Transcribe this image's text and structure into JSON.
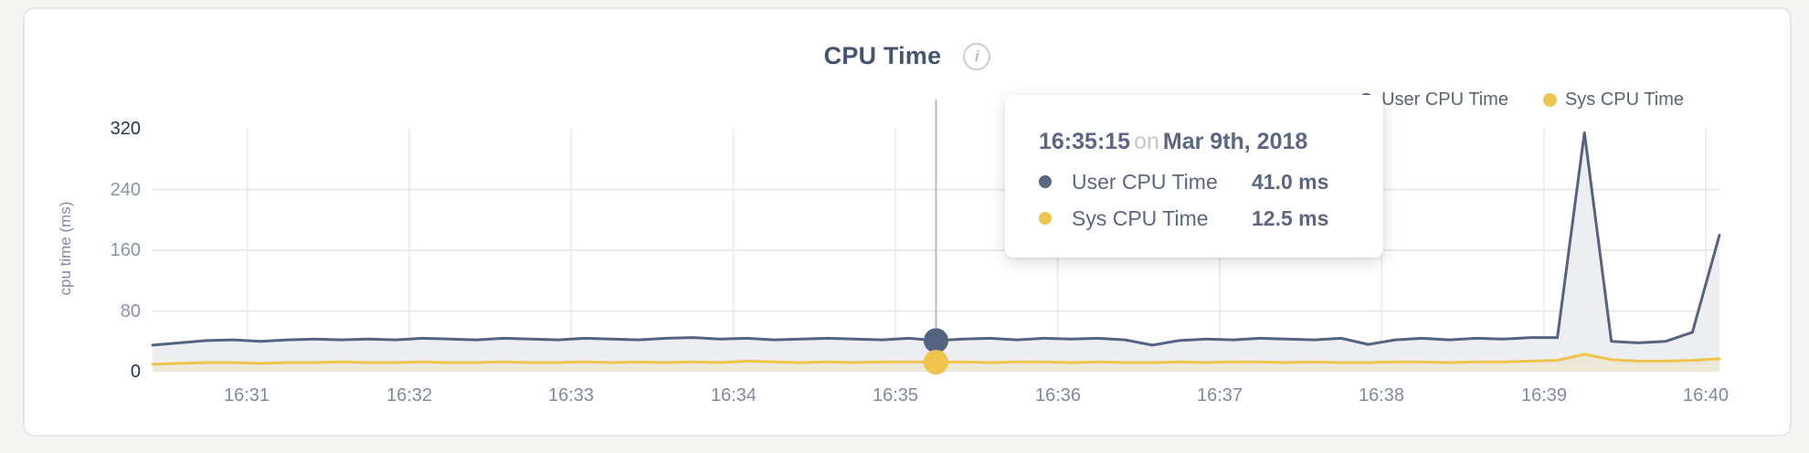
{
  "header": {
    "title": "CPU Time",
    "info_icon": "i"
  },
  "legend": {
    "items": [
      {
        "label": "User CPU Time",
        "color": "#5a6782"
      },
      {
        "label": "Sys CPU Time",
        "color": "#efc44d"
      }
    ]
  },
  "tooltip": {
    "time": "16:35:15",
    "conj": "on",
    "date": "Mar 9th, 2018",
    "rows": [
      {
        "label": "User CPU Time",
        "value": "41.0 ms",
        "color": "#5a6782"
      },
      {
        "label": "Sys CPU Time",
        "value": "12.5 ms",
        "color": "#efc44d"
      }
    ]
  },
  "chart_data": {
    "type": "area",
    "title": "CPU Time",
    "xlabel": "",
    "ylabel": "cpu time (ms)",
    "ylim": [
      0,
      320
    ],
    "yticks": [
      0,
      80,
      160,
      240,
      320
    ],
    "xticks": [
      "16:31",
      "16:32",
      "16:33",
      "16:34",
      "16:35",
      "16:36",
      "16:37",
      "16:38",
      "16:39",
      "16:40"
    ],
    "x_start": "16:30:25",
    "x_end": "16:40:05",
    "x_interval_s": 10,
    "grid": true,
    "legend_position": "top-right",
    "colors": {
      "h_gridline": "#eaeaea",
      "v_gridline": "#ededed",
      "crosshair": "#bbbbbb",
      "y_tick_major": "#22375c",
      "y_tick_minor": "#8a92a6",
      "x_tick": "#7e89a3"
    },
    "series": [
      {
        "name": "User CPU Time",
        "color": "#54637f",
        "fill": "#eceef2",
        "values": [
          35,
          38,
          41,
          42,
          40,
          42,
          43,
          42,
          43,
          42,
          44,
          43,
          42,
          44,
          43,
          42,
          44,
          43,
          42,
          44,
          45,
          43,
          44,
          42,
          43,
          44,
          43,
          42,
          44,
          41,
          43,
          44,
          42,
          44,
          43,
          44,
          42,
          35,
          41,
          43,
          42,
          44,
          43,
          42,
          44,
          36,
          42,
          44,
          42,
          44,
          43,
          45,
          45,
          315,
          40,
          38,
          40,
          52,
          180
        ]
      },
      {
        "name": "Sys CPU Time",
        "color": "#efc44d",
        "fill": "rgba(239,196,77,0.16)",
        "values": [
          10,
          11,
          12,
          12,
          11,
          12,
          12,
          13,
          12,
          12,
          13,
          12,
          12,
          13,
          12,
          12,
          13,
          12,
          13,
          12,
          13,
          12,
          14,
          13,
          12,
          13,
          12,
          13,
          13,
          12.5,
          13,
          12,
          13,
          13,
          12,
          13,
          12,
          12,
          13,
          12,
          13,
          13,
          12,
          13,
          12,
          12,
          13,
          13,
          12,
          13,
          13,
          14,
          15,
          23,
          16,
          14,
          14,
          15,
          17
        ]
      }
    ],
    "highlight": {
      "index": 29,
      "time": "16:35:15",
      "date": "Mar 9th, 2018",
      "values_ms": [
        41.0,
        12.5
      ]
    }
  }
}
